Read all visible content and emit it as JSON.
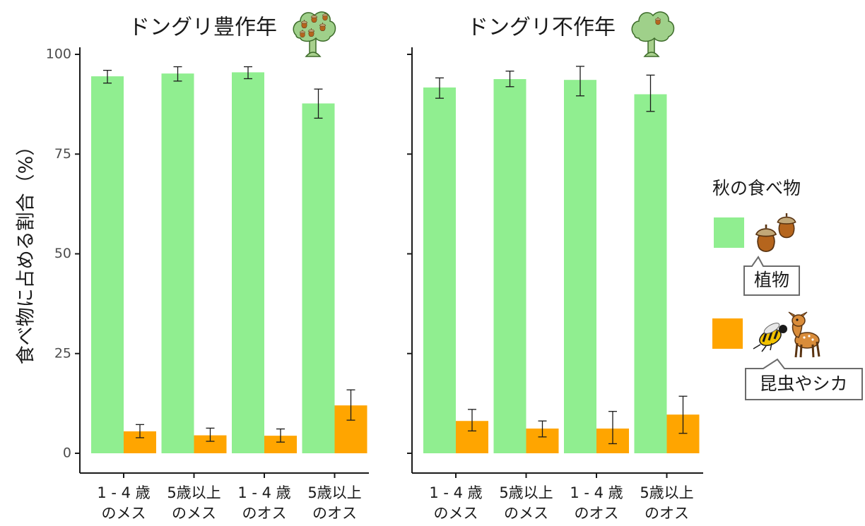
{
  "colors": {
    "plant": "#90ee90",
    "animal": "#ffa500",
    "axis": "#1a1a1a",
    "tick_text": "#4d4d4d"
  },
  "chart_data": {
    "type": "bar",
    "ylabel": "食べ物に占める割合（%）",
    "ylim": [
      0,
      100
    ],
    "yticks": [
      0,
      25,
      50,
      75,
      100
    ],
    "categories": [
      [
        "1 - 4 歳",
        "のメス"
      ],
      [
        "5歳以上",
        "のメス"
      ],
      [
        "1 - 4 歳",
        "のオス"
      ],
      [
        "5歳以上",
        "のオス"
      ]
    ],
    "legend": {
      "title": "秋の食べ物",
      "placement": "right",
      "entries": [
        {
          "label": "植物",
          "color": "#90ee90",
          "icon": "acorns-icon"
        },
        {
          "label": "昆虫やシカ",
          "color": "#ffa500",
          "icon": "wasp-and-fawn-icon"
        }
      ]
    },
    "panels": [
      {
        "title": "ドングリ豊作年",
        "icon": "oak-tree-with-acorns-icon",
        "series": [
          {
            "name": "植物",
            "values": [
              94.5,
              95.2,
              95.5,
              87.7
            ],
            "err_low": [
              92.8,
              93.3,
              93.9,
              84.0
            ],
            "err_high": [
              96.0,
              96.9,
              96.9,
              91.3
            ]
          },
          {
            "name": "昆虫やシカ",
            "values": [
              5.5,
              4.5,
              4.4,
              12.0
            ],
            "err_low": [
              3.9,
              3.0,
              2.8,
              8.3
            ],
            "err_high": [
              7.2,
              6.3,
              6.1,
              15.9
            ]
          }
        ]
      },
      {
        "title": "ドングリ不作年",
        "icon": "oak-tree-icon",
        "series": [
          {
            "name": "植物",
            "values": [
              91.7,
              93.8,
              93.6,
              90.0
            ],
            "err_low": [
              89.0,
              91.9,
              89.6,
              85.7
            ],
            "err_high": [
              94.1,
              95.8,
              97.0,
              94.8
            ]
          },
          {
            "name": "昆虫やシカ",
            "values": [
              8.1,
              6.2,
              6.2,
              9.7
            ],
            "err_low": [
              5.6,
              4.1,
              2.4,
              5.0
            ],
            "err_high": [
              11.0,
              8.1,
              10.5,
              14.3
            ]
          }
        ]
      }
    ]
  }
}
